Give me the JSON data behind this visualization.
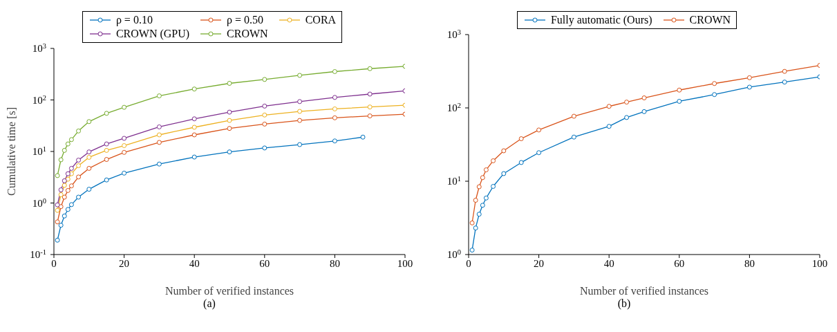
{
  "chart_data": [
    {
      "type": "line",
      "title": "(a)",
      "xlabel": "Number of verified instances",
      "ylabel": "Cumulative time [s]",
      "log": "y",
      "marker": "circle",
      "legend": "top",
      "xlim": [
        0,
        100
      ],
      "xticks": [
        0,
        20,
        40,
        60,
        80,
        100
      ],
      "ylim": [
        0.1,
        1000
      ],
      "yticks": [
        {
          "value": 0.1,
          "label": "10$^{-1}$"
        },
        {
          "value": 1,
          "label": "10$^{0}$"
        },
        {
          "value": 10,
          "label": "10$^{1}$"
        },
        {
          "value": 100,
          "label": "10$^{2}$"
        },
        {
          "value": 1000,
          "label": "10$^{3}$"
        }
      ],
      "x": [
        1,
        2,
        3,
        4,
        5,
        7,
        10,
        15,
        20,
        30,
        40,
        50,
        60,
        70,
        80,
        90,
        100
      ],
      "series": [
        {
          "name": "ρ = 0.10",
          "color": "#0072bd",
          "x": [
            1,
            2,
            3,
            4,
            5,
            7,
            10,
            15,
            20,
            30,
            40,
            50,
            60,
            70,
            80,
            88
          ],
          "values": [
            0.19,
            0.37,
            0.56,
            0.75,
            0.93,
            1.3,
            1.85,
            2.8,
            3.8,
            5.7,
            7.8,
            9.8,
            11.7,
            13.6,
            16,
            19
          ]
        },
        {
          "name": "ρ = 0.50",
          "color": "#d95319",
          "values": [
            0.43,
            0.85,
            1.3,
            1.75,
            2.15,
            3.2,
            4.7,
            7,
            9.6,
            15,
            21,
            28,
            34,
            40,
            45,
            49,
            53
          ]
        },
        {
          "name": "CORA",
          "color": "#edb120",
          "values": [
            0.72,
            1.45,
            2.2,
            2.9,
            3.7,
            5.3,
            7.7,
            10.5,
            13,
            21,
            29.5,
            40,
            51,
            60,
            67,
            73,
            79
          ]
        },
        {
          "name": "CROWN (GPU)",
          "color": "#7e2f8e",
          "values": [
            0.92,
            1.8,
            2.7,
            3.7,
            4.7,
            6.8,
            9.8,
            14,
            18,
            30,
            43,
            58,
            76,
            93,
            112,
            130,
            150
          ]
        },
        {
          "name": "CROWN",
          "color": "#77ac30",
          "values": [
            3.4,
            6.9,
            10.5,
            14,
            17,
            25,
            38,
            55,
            72,
            120,
            163,
            210,
            250,
            300,
            355,
            405,
            450
          ]
        }
      ]
    },
    {
      "type": "line",
      "title": "(b)",
      "xlabel": "Number of verified instances",
      "log": "y",
      "marker": "circle",
      "legend": "top",
      "xlim": [
        0,
        100
      ],
      "xticks": [
        0,
        20,
        40,
        60,
        80,
        100
      ],
      "ylim": [
        1,
        1000
      ],
      "yticks": [
        {
          "value": 1,
          "label": "10$^{0}$"
        },
        {
          "value": 10,
          "label": "10$^{1}$"
        },
        {
          "value": 100,
          "label": "10$^{2}$"
        },
        {
          "value": 1000,
          "label": "10$^{3}$"
        }
      ],
      "x": [
        1,
        2,
        3,
        4,
        5,
        7,
        10,
        15,
        20,
        30,
        40,
        45,
        50,
        60,
        70,
        80,
        90,
        100
      ],
      "series": [
        {
          "name": "Fully automatic (Ours)",
          "color": "#0072bd",
          "values": [
            1.15,
            2.3,
            3.55,
            4.7,
            5.9,
            8.5,
            12.7,
            18,
            24.5,
            40,
            56,
            74,
            89,
            123,
            152,
            192,
            225,
            265
          ]
        },
        {
          "name": "CROWN",
          "color": "#d95319",
          "values": [
            2.7,
            5.5,
            8.4,
            11.2,
            14.3,
            19,
            26,
            38,
            50,
            77,
            105,
            120,
            137,
            175,
            215,
            258,
            315,
            380
          ]
        }
      ]
    }
  ]
}
